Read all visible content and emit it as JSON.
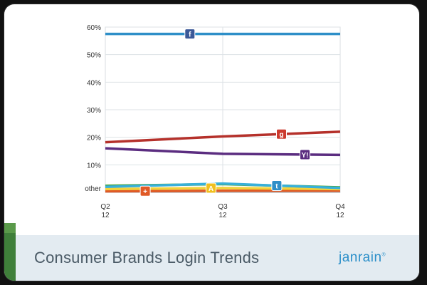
{
  "title": "Consumer Brands Login Trends",
  "logo_text": "janrain",
  "logo_mark": "®",
  "chart_data": {
    "type": "line",
    "title": "Consumer Brands Login Trends",
    "x": [
      "Q2 12",
      "Q3 12",
      "Q4 12"
    ],
    "x_tick_labels": [
      [
        "Q2",
        "12"
      ],
      [
        "Q3",
        "12"
      ],
      [
        "Q4",
        "12"
      ]
    ],
    "y_tick_labels": [
      "other",
      "10%",
      "20%",
      "30%",
      "40%",
      "50%",
      "60%"
    ],
    "ylim": [
      0,
      60
    ],
    "grid": true,
    "series": [
      {
        "icon": "facebook-icon",
        "color": "#2e8fc8",
        "values": [
          57.5,
          57.5,
          57.5
        ]
      },
      {
        "icon": "google-icon",
        "color": "#b5312b",
        "values": [
          18.2,
          20.3,
          22.0
        ]
      },
      {
        "icon": "yahoo-icon",
        "color": "#5b2d80",
        "values": [
          16.0,
          14.0,
          13.6
        ]
      },
      {
        "icon": "twitter-icon",
        "color": "#38b0da",
        "values": [
          2.0,
          3.2,
          1.6
        ]
      },
      {
        "icon": "aim-icon",
        "color": "#f2d23a",
        "values": [
          1.2,
          1.6,
          1.2
        ]
      },
      {
        "icon": "paypal-icon",
        "color": "#4aa63a",
        "values": [
          2.4,
          3.0,
          1.8
        ]
      },
      {
        "icon": "myspace-icon",
        "color": "#e05a26",
        "values": [
          0.4,
          0.6,
          0.6
        ]
      }
    ]
  }
}
